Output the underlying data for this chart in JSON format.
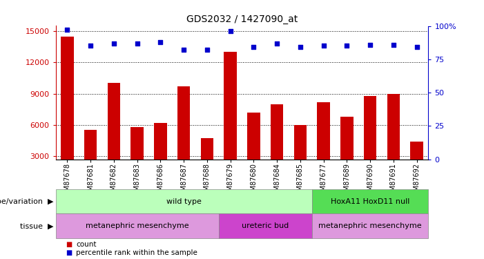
{
  "title": "GDS2032 / 1427090_at",
  "samples": [
    "GSM87678",
    "GSM87681",
    "GSM87682",
    "GSM87683",
    "GSM87686",
    "GSM87687",
    "GSM87688",
    "GSM87679",
    "GSM87680",
    "GSM87684",
    "GSM87685",
    "GSM87677",
    "GSM87689",
    "GSM87690",
    "GSM87691",
    "GSM87692"
  ],
  "counts": [
    14500,
    5500,
    10000,
    5800,
    6200,
    9700,
    4700,
    13000,
    7200,
    8000,
    6000,
    8200,
    6800,
    8800,
    9000,
    4400
  ],
  "percentile_ranks": [
    97,
    85,
    87,
    87,
    88,
    82,
    82,
    96,
    84,
    87,
    84,
    85,
    85,
    86,
    86,
    84
  ],
  "ylim_left": [
    2700,
    15500
  ],
  "ylim_right": [
    0,
    100
  ],
  "yticks_left": [
    3000,
    6000,
    9000,
    12000,
    15000
  ],
  "yticks_right": [
    0,
    25,
    50,
    75,
    100
  ],
  "bar_color": "#cc0000",
  "marker_color": "#0000cc",
  "genotype_groups": [
    {
      "label": "wild type",
      "start": 0,
      "end": 11,
      "color": "#bbffbb"
    },
    {
      "label": "HoxA11 HoxD11 null",
      "start": 11,
      "end": 16,
      "color": "#55dd55"
    }
  ],
  "tissue_groups": [
    {
      "label": "metanephric mesenchyme",
      "start": 0,
      "end": 7,
      "color": "#dd99dd"
    },
    {
      "label": "ureteric bud",
      "start": 7,
      "end": 11,
      "color": "#cc44cc"
    },
    {
      "label": "metanephric mesenchyme",
      "start": 11,
      "end": 16,
      "color": "#dd99dd"
    }
  ],
  "legend_items": [
    {
      "label": "count",
      "color": "#cc0000"
    },
    {
      "label": "percentile rank within the sample",
      "color": "#0000cc"
    }
  ],
  "genotype_label": "genotype/variation",
  "tissue_label": "tissue",
  "tick_label_color_left": "#cc0000",
  "tick_label_color_right": "#0000cc",
  "grid_color": "#000000"
}
